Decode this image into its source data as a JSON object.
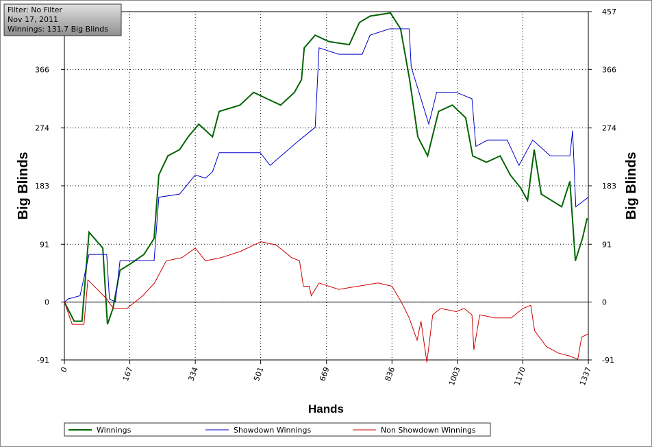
{
  "chart_data": {
    "type": "line",
    "info": [
      "Filter: No Filter",
      "Nov 17, 2011",
      "Winnings: 131.7 Big Blinds"
    ],
    "xlabel": "Hands",
    "ylabel": "Big Blinds",
    "xlim": [
      0,
      1337
    ],
    "xticks": [
      0,
      167,
      334,
      501,
      669,
      836,
      1003,
      1170,
      1337
    ],
    "ylim": [
      -91,
      457
    ],
    "yticks": [
      -91,
      0,
      91,
      183,
      274,
      366,
      457
    ],
    "grid": true,
    "series": [
      {
        "name": "Winnings",
        "color": "#006400",
        "x": [
          0,
          25,
          45,
          63,
          98,
          110,
          124,
          142,
          168,
          203,
          229,
          241,
          264,
          294,
          316,
          343,
          378,
          395,
          448,
          483,
          517,
          552,
          587,
          605,
          612,
          640,
          675,
          727,
          753,
          780,
          832,
          858,
          881,
          902,
          927,
          955,
          990,
          1024,
          1042,
          1077,
          1112,
          1138,
          1164,
          1182,
          1199,
          1217,
          1243,
          1269,
          1290,
          1304,
          1322,
          1334
        ],
        "values": [
          0,
          -30,
          -30,
          110,
          85,
          -35,
          -10,
          50,
          60,
          75,
          100,
          200,
          230,
          240,
          260,
          280,
          260,
          300,
          310,
          330,
          320,
          310,
          330,
          350,
          400,
          420,
          410,
          405,
          440,
          450,
          455,
          430,
          350,
          260,
          230,
          300,
          310,
          290,
          230,
          220,
          230,
          200,
          180,
          160,
          240,
          170,
          160,
          150,
          190,
          65,
          100,
          132
        ]
      },
      {
        "name": "Showdown Winnings",
        "color": "#0000cc",
        "x": [
          0,
          10,
          40,
          63,
          108,
          115,
          130,
          142,
          229,
          241,
          294,
          334,
          360,
          378,
          395,
          500,
          525,
          600,
          640,
          650,
          700,
          760,
          780,
          830,
          880,
          885,
          930,
          950,
          1000,
          1040,
          1050,
          1080,
          1130,
          1160,
          1195,
          1240,
          1290,
          1297,
          1305,
          1337
        ],
        "values": [
          0,
          5,
          10,
          75,
          75,
          5,
          0,
          65,
          65,
          165,
          170,
          200,
          195,
          205,
          235,
          235,
          215,
          255,
          275,
          400,
          390,
          390,
          420,
          430,
          430,
          370,
          280,
          330,
          330,
          320,
          245,
          255,
          255,
          215,
          255,
          230,
          230,
          270,
          150,
          165
        ]
      },
      {
        "name": "Non Showdown Winnings",
        "color": "#cc0000",
        "x": [
          0,
          20,
          50,
          60,
          108,
          125,
          160,
          200,
          230,
          260,
          300,
          334,
          360,
          400,
          450,
          501,
          540,
          580,
          600,
          610,
          625,
          630,
          650,
          700,
          750,
          800,
          836,
          860,
          880,
          900,
          910,
          925,
          940,
          960,
          1000,
          1020,
          1040,
          1045,
          1060,
          1100,
          1140,
          1170,
          1190,
          1200,
          1230,
          1260,
          1290,
          1310,
          1320,
          1337
        ],
        "values": [
          0,
          -35,
          -35,
          35,
          5,
          -10,
          -10,
          10,
          30,
          65,
          70,
          85,
          65,
          70,
          80,
          95,
          90,
          70,
          65,
          25,
          25,
          10,
          30,
          20,
          25,
          30,
          25,
          0,
          -25,
          -60,
          -30,
          -95,
          -20,
          -10,
          -15,
          -10,
          -20,
          -75,
          -20,
          -25,
          -25,
          -10,
          -5,
          -45,
          -70,
          -80,
          -85,
          -90,
          -55,
          -50
        ]
      }
    ]
  }
}
